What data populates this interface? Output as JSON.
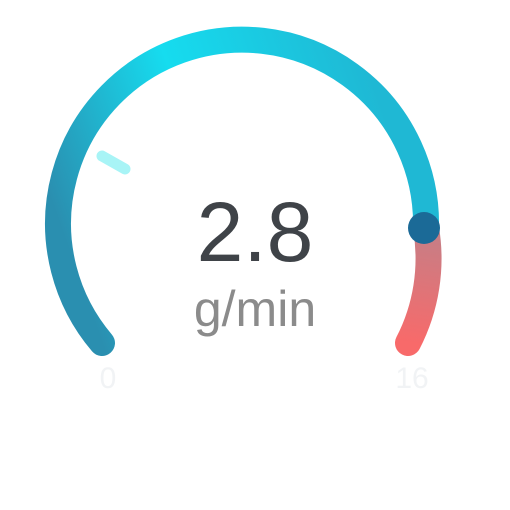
{
  "gauge": {
    "value": "2.8",
    "unit": "g/min",
    "min_label": "0",
    "max_label": "16",
    "min": 0,
    "max": 16,
    "current": 2.8,
    "colors": {
      "arc_start": "#2a8fb0",
      "arc_mid": "#16dcef",
      "arc_end": "#1fb8d4",
      "danger_start": "#c47f87",
      "danger_end": "#f86a6a",
      "marker_fill": "#a8f4f6",
      "knob_fill": "#1b6a97"
    }
  }
}
